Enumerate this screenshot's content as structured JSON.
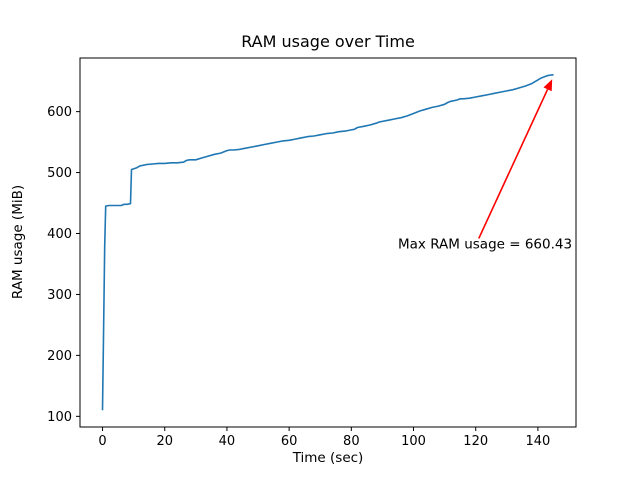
{
  "figure": {
    "title": "RAM usage over Time",
    "xlabel": "Time (sec)",
    "ylabel": "RAM usage (MiB)"
  },
  "chart_data": {
    "type": "line",
    "title": "RAM usage over Time",
    "xlabel": "Time (sec)",
    "ylabel": "RAM usage (MiB)",
    "grid": false,
    "legend": "none",
    "xlim": [
      -7.25,
      152.25
    ],
    "ylim": [
      82.5,
      688
    ],
    "xticks": [
      0,
      20,
      40,
      60,
      80,
      100,
      120,
      140
    ],
    "yticks": [
      100,
      200,
      300,
      400,
      500,
      600
    ],
    "max_value": 660.43,
    "series": [
      {
        "name": "RAM usage",
        "color": "#1f77b4",
        "x": [
          0,
          0.3,
          0.7,
          1,
          2,
          4,
          6,
          7,
          8,
          9,
          9.3,
          10,
          11,
          12,
          13,
          14,
          16,
          18,
          20,
          22,
          24,
          26,
          27,
          28,
          30,
          32,
          34,
          36,
          38,
          40,
          41,
          42,
          44,
          46,
          48,
          50,
          52,
          54,
          56,
          58,
          60,
          62,
          64,
          66,
          68,
          70,
          72,
          74,
          76,
          78,
          80,
          81,
          82,
          84,
          86,
          88,
          89,
          90,
          92,
          94,
          96,
          98,
          100,
          102,
          104,
          106,
          108,
          110,
          111,
          112,
          114,
          115,
          116,
          118,
          120,
          122,
          124,
          126,
          128,
          130,
          132,
          134,
          136,
          138,
          140,
          141,
          142,
          143,
          144,
          145
        ],
        "y": [
          110,
          230,
          380,
          445,
          446,
          446,
          446,
          448,
          448,
          449,
          505,
          506,
          508,
          511,
          512,
          513,
          514,
          515,
          515,
          516,
          516,
          517,
          520,
          521,
          521,
          524,
          527,
          530,
          532,
          536,
          537,
          537,
          538,
          540,
          542,
          544,
          546,
          548,
          550,
          552,
          553,
          555,
          557,
          559,
          560,
          562,
          564,
          565,
          567,
          568,
          570,
          571,
          574,
          576,
          578,
          581,
          583,
          584,
          586,
          588,
          590,
          593,
          597,
          601,
          604,
          607,
          609,
          612,
          615,
          617,
          619,
          621,
          621,
          622,
          624,
          626,
          628,
          630,
          632,
          634,
          636,
          639,
          642,
          646,
          652,
          655,
          657,
          659,
          660,
          660.43
        ]
      }
    ],
    "annotation": {
      "text": "Max RAM usage = 660.43",
      "color": "#ff0000",
      "point_xy": [
        145,
        660.43
      ],
      "text_xy": [
        95,
        375
      ],
      "arrow_from": [
        121,
        392
      ],
      "arrow_to": [
        144.6,
        653
      ]
    }
  }
}
